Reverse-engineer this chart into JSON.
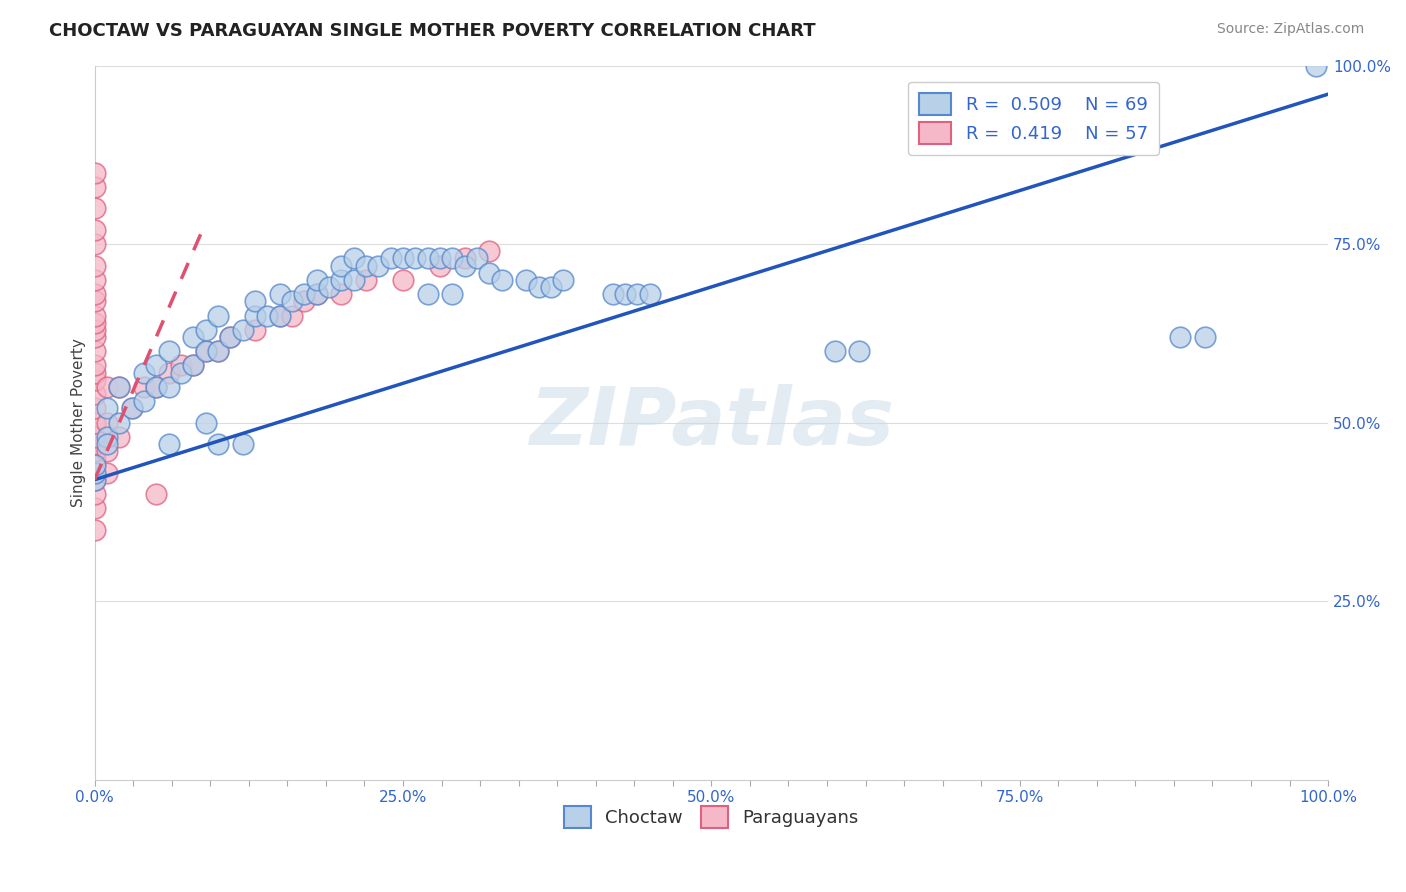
{
  "title": "CHOCTAW VS PARAGUAYAN SINGLE MOTHER POVERTY CORRELATION CHART",
  "source": "Source: ZipAtlas.com",
  "ylabel": "Single Mother Poverty",
  "watermark": "ZIPatlas",
  "legend": {
    "choctaw_R": "0.509",
    "choctaw_N": "69",
    "paraguayan_R": "0.419",
    "paraguayan_N": "57"
  },
  "choctaw_color": "#b8d0e8",
  "choctaw_edge_color": "#5588cc",
  "choctaw_line_color": "#2255bb",
  "paraguayan_color": "#f5b8c8",
  "paraguayan_edge_color": "#e06080",
  "paraguayan_line_color": "#e05070",
  "background_color": "#ffffff",
  "grid_color": "#dddddd",
  "xlim": [
    0.0,
    1.0
  ],
  "ylim": [
    0.0,
    1.0
  ],
  "xtick_labels": [
    "0.0%",
    "",
    "",
    "",
    "",
    "",
    "",
    "",
    "25.0%",
    "",
    "",
    "",
    "",
    "",
    "",
    "",
    "50.0%",
    "",
    "",
    "",
    "",
    "",
    "",
    "",
    "75.0%",
    "",
    "",
    "",
    "",
    "",
    "",
    "",
    "100.0%"
  ],
  "xtick_vals": [
    0.0,
    0.03125,
    0.0625,
    0.09375,
    0.125,
    0.15625,
    0.1875,
    0.21875,
    0.25,
    0.28125,
    0.3125,
    0.34375,
    0.375,
    0.40625,
    0.4375,
    0.46875,
    0.5,
    0.53125,
    0.5625,
    0.59375,
    0.625,
    0.65625,
    0.6875,
    0.71875,
    0.75,
    0.78125,
    0.8125,
    0.84375,
    0.875,
    0.90625,
    0.9375,
    0.96875,
    1.0
  ],
  "ytick_labels": [
    "25.0%",
    "50.0%",
    "75.0%",
    "100.0%"
  ],
  "ytick_vals": [
    0.25,
    0.5,
    0.75,
    1.0
  ],
  "choctaw_x": [
    0.01,
    0.01,
    0.02,
    0.02,
    0.03,
    0.04,
    0.04,
    0.05,
    0.05,
    0.06,
    0.06,
    0.07,
    0.08,
    0.08,
    0.09,
    0.09,
    0.1,
    0.1,
    0.11,
    0.12,
    0.13,
    0.13,
    0.14,
    0.15,
    0.15,
    0.16,
    0.17,
    0.18,
    0.18,
    0.19,
    0.2,
    0.2,
    0.21,
    0.21,
    0.22,
    0.23,
    0.24,
    0.25,
    0.26,
    0.27,
    0.28,
    0.29,
    0.3,
    0.31,
    0.32,
    0.33,
    0.35,
    0.36,
    0.37,
    0.38,
    0.27,
    0.29,
    0.42,
    0.43,
    0.44,
    0.45,
    0.6,
    0.62,
    0.88,
    0.9,
    0.99,
    0.0,
    0.0,
    0.0,
    0.01,
    0.06,
    0.09,
    0.1,
    0.12
  ],
  "choctaw_y": [
    0.48,
    0.52,
    0.5,
    0.55,
    0.52,
    0.53,
    0.57,
    0.55,
    0.58,
    0.55,
    0.6,
    0.57,
    0.58,
    0.62,
    0.6,
    0.63,
    0.6,
    0.65,
    0.62,
    0.63,
    0.65,
    0.67,
    0.65,
    0.65,
    0.68,
    0.67,
    0.68,
    0.68,
    0.7,
    0.69,
    0.7,
    0.72,
    0.7,
    0.73,
    0.72,
    0.72,
    0.73,
    0.73,
    0.73,
    0.73,
    0.73,
    0.73,
    0.72,
    0.73,
    0.71,
    0.7,
    0.7,
    0.69,
    0.69,
    0.7,
    0.68,
    0.68,
    0.68,
    0.68,
    0.68,
    0.68,
    0.6,
    0.6,
    0.62,
    0.62,
    1.0,
    0.42,
    0.43,
    0.44,
    0.47,
    0.47,
    0.5,
    0.47,
    0.47
  ],
  "paraguayan_x": [
    0.0,
    0.0,
    0.0,
    0.0,
    0.0,
    0.0,
    0.0,
    0.0,
    0.0,
    0.0,
    0.0,
    0.0,
    0.0,
    0.0,
    0.0,
    0.0,
    0.0,
    0.0,
    0.0,
    0.0,
    0.0,
    0.0,
    0.0,
    0.0,
    0.0,
    0.0,
    0.0,
    0.0,
    0.0,
    0.0,
    0.01,
    0.01,
    0.01,
    0.01,
    0.02,
    0.02,
    0.03,
    0.04,
    0.05,
    0.06,
    0.07,
    0.08,
    0.09,
    0.1,
    0.11,
    0.13,
    0.15,
    0.16,
    0.17,
    0.18,
    0.2,
    0.22,
    0.25,
    0.28,
    0.3,
    0.32,
    0.05
  ],
  "paraguayan_y": [
    0.35,
    0.38,
    0.4,
    0.42,
    0.43,
    0.44,
    0.45,
    0.46,
    0.47,
    0.48,
    0.5,
    0.52,
    0.54,
    0.56,
    0.57,
    0.58,
    0.6,
    0.62,
    0.63,
    0.64,
    0.65,
    0.67,
    0.68,
    0.7,
    0.72,
    0.75,
    0.77,
    0.8,
    0.83,
    0.85,
    0.43,
    0.46,
    0.5,
    0.55,
    0.48,
    0.55,
    0.52,
    0.55,
    0.55,
    0.57,
    0.58,
    0.58,
    0.6,
    0.6,
    0.62,
    0.63,
    0.65,
    0.65,
    0.67,
    0.68,
    0.68,
    0.7,
    0.7,
    0.72,
    0.73,
    0.74,
    0.4
  ],
  "blue_line_x0": 0.0,
  "blue_line_y0": 0.42,
  "blue_line_x1": 1.0,
  "blue_line_y1": 0.96,
  "pink_line_x0": 0.0,
  "pink_line_y0": 0.42,
  "pink_line_x1": 0.09,
  "pink_line_y1": 0.78
}
